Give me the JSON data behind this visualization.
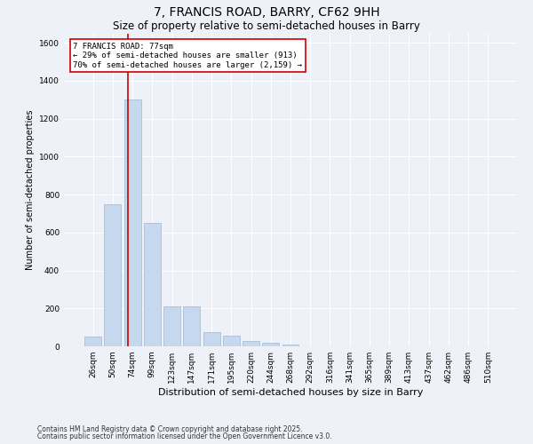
{
  "title1": "7, FRANCIS ROAD, BARRY, CF62 9HH",
  "title2": "Size of property relative to semi-detached houses in Barry",
  "xlabel": "Distribution of semi-detached houses by size in Barry",
  "ylabel": "Number of semi-detached properties",
  "categories": [
    "26sqm",
    "50sqm",
    "74sqm",
    "99sqm",
    "123sqm",
    "147sqm",
    "171sqm",
    "195sqm",
    "220sqm",
    "244sqm",
    "268sqm",
    "292sqm",
    "316sqm",
    "341sqm",
    "365sqm",
    "389sqm",
    "413sqm",
    "437sqm",
    "462sqm",
    "486sqm",
    "510sqm"
  ],
  "values": [
    50,
    750,
    1300,
    650,
    210,
    210,
    75,
    55,
    30,
    20,
    10,
    2,
    1,
    1,
    0,
    0,
    0,
    0,
    0,
    0,
    0
  ],
  "bar_color": "#c5d8ed",
  "bar_edge_color": "#a0b8d0",
  "ylim": [
    0,
    1650
  ],
  "yticks": [
    0,
    200,
    400,
    600,
    800,
    1000,
    1200,
    1400,
    1600
  ],
  "vline_color": "#cc0000",
  "vline_x": 1.75,
  "annotation_text": "7 FRANCIS ROAD: 77sqm\n← 29% of semi-detached houses are smaller (913)\n70% of semi-detached houses are larger (2,159) →",
  "annotation_box_color": "#ffffff",
  "annotation_box_edge": "#cc0000",
  "footnote1": "Contains HM Land Registry data © Crown copyright and database right 2025.",
  "footnote2": "Contains public sector information licensed under the Open Government Licence v3.0.",
  "background_color": "#eef2f8",
  "plot_background": "#eef2f8",
  "title_fontsize": 10,
  "subtitle_fontsize": 8.5,
  "ylabel_fontsize": 7,
  "xlabel_fontsize": 8,
  "tick_fontsize": 6.5,
  "footnote_fontsize": 5.5
}
